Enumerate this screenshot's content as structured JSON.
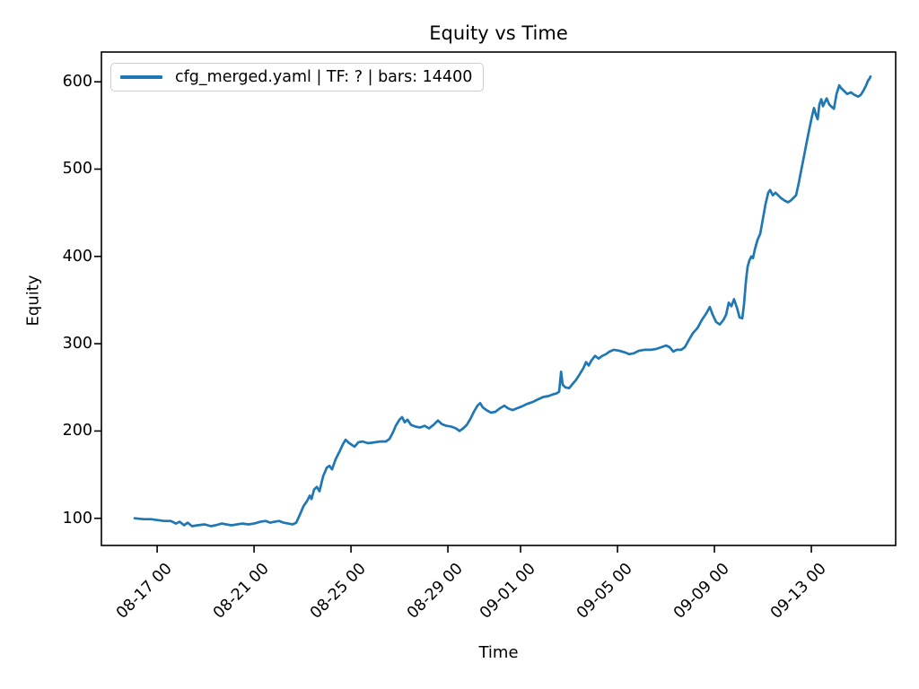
{
  "title": "Equity vs Time",
  "axis": {
    "x_label": "Time",
    "y_label": "Equity"
  },
  "legend": {
    "label": "cfg_merged.yaml | TF: ? | bars: 14400",
    "line_color": "#1f77b4",
    "position": "upper left"
  },
  "chart_data": {
    "type": "line",
    "title": "Equity vs Time",
    "xlabel": "Time",
    "ylabel": "Equity",
    "grid": false,
    "legend_position": "upper left",
    "x_unit": "days since 08-14 00:00 (dates shown as MM-DD HH on axis)",
    "xlim": [
      0.7,
      33.48
    ],
    "ylim": [
      68.9,
      634.1
    ],
    "x_ticks": [
      {
        "t": 3,
        "label": "08-17 00"
      },
      {
        "t": 7,
        "label": "08-21 00"
      },
      {
        "t": 11,
        "label": "08-25 00"
      },
      {
        "t": 15,
        "label": "08-29 00"
      },
      {
        "t": 18,
        "label": "09-01 00"
      },
      {
        "t": 22,
        "label": "09-05 00"
      },
      {
        "t": 26,
        "label": "09-09 00"
      },
      {
        "t": 30,
        "label": "09-13 00"
      }
    ],
    "y_ticks": [
      100,
      200,
      300,
      400,
      500,
      600
    ],
    "series": [
      {
        "name": "cfg_merged.yaml | TF: ? | bars: 14400",
        "color": "#1f77b4",
        "points": [
          [
            2.07,
            100
          ],
          [
            2.44,
            99
          ],
          [
            2.74,
            99
          ],
          [
            3.0,
            98
          ],
          [
            3.3,
            97
          ],
          [
            3.56,
            97
          ],
          [
            3.78,
            94
          ],
          [
            3.93,
            96
          ],
          [
            4.11,
            92
          ],
          [
            4.26,
            95
          ],
          [
            4.44,
            91
          ],
          [
            4.67,
            92
          ],
          [
            4.96,
            93
          ],
          [
            5.22,
            91
          ],
          [
            5.41,
            92
          ],
          [
            5.67,
            94
          ],
          [
            5.85,
            93
          ],
          [
            6.07,
            92
          ],
          [
            6.3,
            93
          ],
          [
            6.52,
            94
          ],
          [
            6.78,
            93
          ],
          [
            7.0,
            94
          ],
          [
            7.26,
            96
          ],
          [
            7.48,
            97
          ],
          [
            7.67,
            95
          ],
          [
            7.85,
            96
          ],
          [
            8.04,
            97
          ],
          [
            8.22,
            95
          ],
          [
            8.41,
            94
          ],
          [
            8.59,
            93
          ],
          [
            8.74,
            95
          ],
          [
            8.89,
            104
          ],
          [
            9.04,
            114
          ],
          [
            9.19,
            120
          ],
          [
            9.3,
            126
          ],
          [
            9.37,
            122
          ],
          [
            9.48,
            133
          ],
          [
            9.59,
            136
          ],
          [
            9.7,
            131
          ],
          [
            9.85,
            148
          ],
          [
            10.0,
            158
          ],
          [
            10.11,
            160
          ],
          [
            10.22,
            156
          ],
          [
            10.37,
            168
          ],
          [
            10.52,
            176
          ],
          [
            10.67,
            185
          ],
          [
            10.78,
            190
          ],
          [
            10.89,
            187
          ],
          [
            11.04,
            184
          ],
          [
            11.15,
            182
          ],
          [
            11.3,
            187
          ],
          [
            11.48,
            188
          ],
          [
            11.7,
            186
          ],
          [
            11.96,
            187
          ],
          [
            12.22,
            188
          ],
          [
            12.44,
            188
          ],
          [
            12.59,
            191
          ],
          [
            12.74,
            199
          ],
          [
            12.85,
            206
          ],
          [
            13.0,
            213
          ],
          [
            13.11,
            216
          ],
          [
            13.22,
            210
          ],
          [
            13.33,
            213
          ],
          [
            13.48,
            207
          ],
          [
            13.67,
            205
          ],
          [
            13.85,
            204
          ],
          [
            14.04,
            206
          ],
          [
            14.22,
            203
          ],
          [
            14.41,
            207
          ],
          [
            14.59,
            212
          ],
          [
            14.74,
            208
          ],
          [
            14.93,
            206
          ],
          [
            15.15,
            205
          ],
          [
            15.33,
            203
          ],
          [
            15.48,
            200
          ],
          [
            15.63,
            203
          ],
          [
            15.78,
            207
          ],
          [
            15.93,
            214
          ],
          [
            16.07,
            222
          ],
          [
            16.22,
            229
          ],
          [
            16.33,
            232
          ],
          [
            16.44,
            227
          ],
          [
            16.59,
            224
          ],
          [
            16.78,
            221
          ],
          [
            16.96,
            222
          ],
          [
            17.15,
            226
          ],
          [
            17.33,
            229
          ],
          [
            17.48,
            226
          ],
          [
            17.67,
            224
          ],
          [
            17.85,
            226
          ],
          [
            18.04,
            228
          ],
          [
            18.26,
            231
          ],
          [
            18.48,
            233
          ],
          [
            18.7,
            236
          ],
          [
            18.93,
            239
          ],
          [
            19.15,
            240
          ],
          [
            19.33,
            242
          ],
          [
            19.48,
            243
          ],
          [
            19.59,
            245
          ],
          [
            19.67,
            268
          ],
          [
            19.74,
            253
          ],
          [
            19.85,
            250
          ],
          [
            20.0,
            249
          ],
          [
            20.15,
            254
          ],
          [
            20.3,
            259
          ],
          [
            20.44,
            265
          ],
          [
            20.59,
            272
          ],
          [
            20.7,
            279
          ],
          [
            20.81,
            275
          ],
          [
            20.93,
            281
          ],
          [
            21.07,
            286
          ],
          [
            21.22,
            283
          ],
          [
            21.37,
            286
          ],
          [
            21.52,
            288
          ],
          [
            21.67,
            291
          ],
          [
            21.85,
            293
          ],
          [
            22.07,
            292
          ],
          [
            22.3,
            290
          ],
          [
            22.48,
            288
          ],
          [
            22.67,
            289
          ],
          [
            22.89,
            292
          ],
          [
            23.11,
            293
          ],
          [
            23.37,
            293
          ],
          [
            23.59,
            294
          ],
          [
            23.81,
            296
          ],
          [
            24.0,
            298
          ],
          [
            24.15,
            296
          ],
          [
            24.3,
            291
          ],
          [
            24.44,
            293
          ],
          [
            24.63,
            293
          ],
          [
            24.78,
            296
          ],
          [
            24.96,
            305
          ],
          [
            25.11,
            312
          ],
          [
            25.3,
            318
          ],
          [
            25.48,
            327
          ],
          [
            25.67,
            335
          ],
          [
            25.81,
            342
          ],
          [
            25.93,
            333
          ],
          [
            26.07,
            325
          ],
          [
            26.22,
            322
          ],
          [
            26.37,
            327
          ],
          [
            26.48,
            333
          ],
          [
            26.59,
            347
          ],
          [
            26.7,
            343
          ],
          [
            26.81,
            351
          ],
          [
            26.93,
            341
          ],
          [
            27.04,
            330
          ],
          [
            27.15,
            329
          ],
          [
            27.22,
            345
          ],
          [
            27.3,
            372
          ],
          [
            27.37,
            388
          ],
          [
            27.44,
            395
          ],
          [
            27.52,
            400
          ],
          [
            27.59,
            398
          ],
          [
            27.67,
            408
          ],
          [
            27.78,
            419
          ],
          [
            27.89,
            426
          ],
          [
            27.96,
            437
          ],
          [
            28.04,
            449
          ],
          [
            28.11,
            460
          ],
          [
            28.22,
            473
          ],
          [
            28.3,
            476
          ],
          [
            28.41,
            470
          ],
          [
            28.52,
            473
          ],
          [
            28.63,
            470
          ],
          [
            28.74,
            467
          ],
          [
            28.89,
            464
          ],
          [
            29.04,
            462
          ],
          [
            29.15,
            464
          ],
          [
            29.26,
            467
          ],
          [
            29.37,
            470
          ],
          [
            29.48,
            484
          ],
          [
            29.59,
            500
          ],
          [
            29.7,
            515
          ],
          [
            29.81,
            531
          ],
          [
            29.93,
            548
          ],
          [
            30.04,
            562
          ],
          [
            30.11,
            570
          ],
          [
            30.19,
            562
          ],
          [
            30.26,
            557
          ],
          [
            30.33,
            574
          ],
          [
            30.41,
            580
          ],
          [
            30.48,
            572
          ],
          [
            30.56,
            577
          ],
          [
            30.63,
            581
          ],
          [
            30.74,
            574
          ],
          [
            30.85,
            571
          ],
          [
            30.93,
            569
          ],
          [
            31.04,
            586
          ],
          [
            31.15,
            596
          ],
          [
            31.22,
            593
          ],
          [
            31.33,
            590
          ],
          [
            31.48,
            586
          ],
          [
            31.63,
            588
          ],
          [
            31.78,
            585
          ],
          [
            31.93,
            583
          ],
          [
            32.04,
            585
          ],
          [
            32.15,
            590
          ],
          [
            32.26,
            596
          ],
          [
            32.33,
            601
          ],
          [
            32.41,
            604
          ],
          [
            32.44,
            606
          ]
        ]
      }
    ]
  }
}
